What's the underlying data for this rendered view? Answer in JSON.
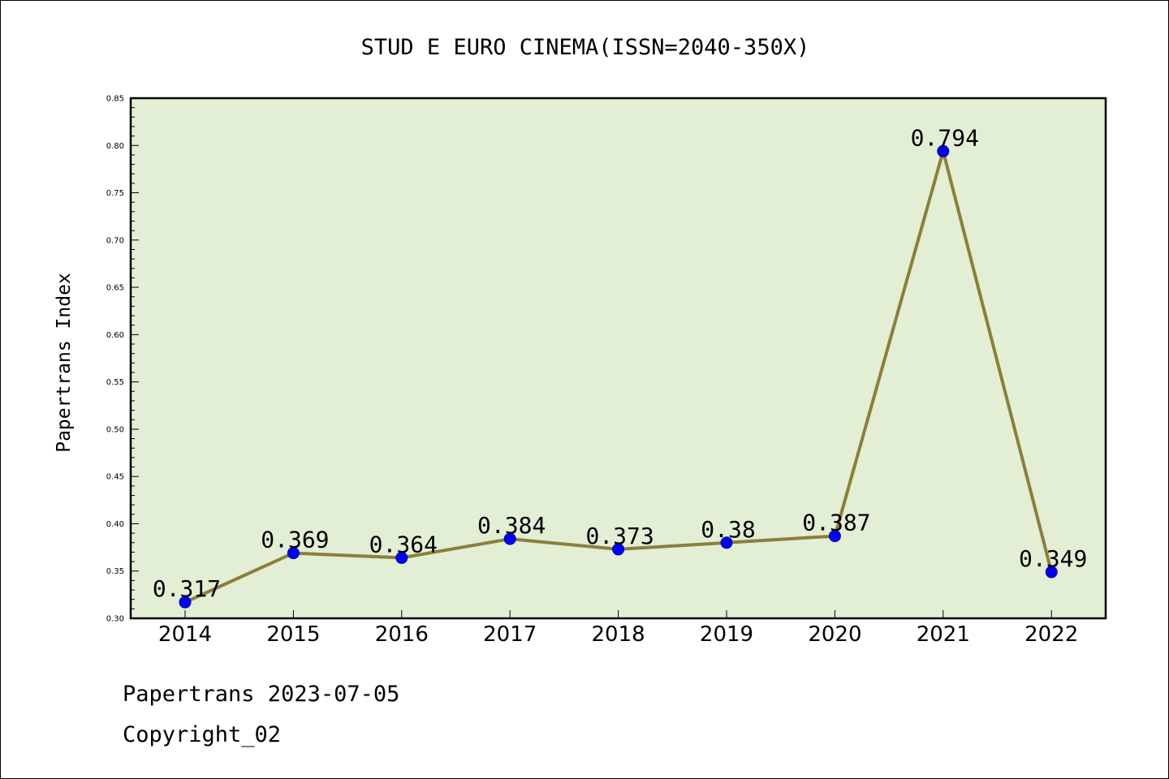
{
  "colors": {
    "plot_background": "#e2efd5",
    "line": "#8b7f3a",
    "marker": "#0000ff",
    "marker_edge": "#00008b",
    "axis": "#000000"
  },
  "chart_data": {
    "type": "line",
    "title": "STUD E EURO CINEMA(ISSN=2040-350X)",
    "xlabel": "",
    "ylabel": "Papertrans Index",
    "categories": [
      "2014",
      "2015",
      "2016",
      "2017",
      "2018",
      "2019",
      "2020",
      "2021",
      "2022"
    ],
    "series": [
      {
        "values": [
          0.317,
          0.369,
          0.364,
          0.384,
          0.373,
          0.38,
          0.387,
          0.794,
          0.349
        ],
        "data_labels": [
          "0.317",
          "0.369",
          "0.364",
          "0.384",
          "0.373",
          "0.38",
          "0.387",
          "0.794",
          "0.349"
        ]
      }
    ],
    "ylim": [
      0.3,
      0.85
    ],
    "yticks": [
      "0.30",
      "0.35",
      "0.40",
      "0.45",
      "0.50",
      "0.55",
      "0.60",
      "0.65",
      "0.70",
      "0.75",
      "0.80",
      "0.85"
    ],
    "grid": false,
    "legend": "none"
  },
  "footer": {
    "line1": "Papertrans 2023-07-05",
    "line2": "Copyright_02"
  }
}
